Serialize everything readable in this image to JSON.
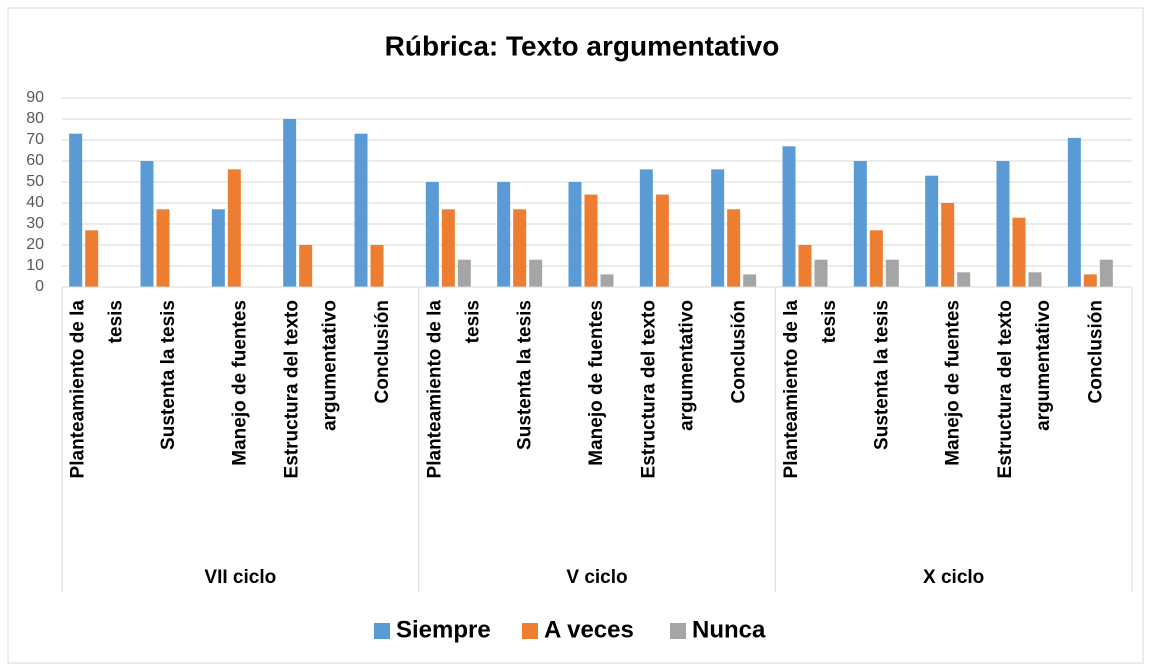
{
  "chart_data": {
    "type": "bar",
    "title": "Rúbrica: Texto argumentativo",
    "categories": [
      "Planteamiento de la tesis",
      "Sustenta la tesis",
      "Manejo de fuentes",
      "Estructura del texto argumentativo",
      "Conclusión",
      "Planteamiento de la tesis",
      "Sustenta la tesis",
      "Manejo de fuentes",
      "Estructura del texto argumentativo",
      "Conclusión",
      "Planteamiento de la tesis",
      "Sustenta la tesis",
      "Manejo de fuentes",
      "Estructura del texto argumentativo",
      "Conclusión"
    ],
    "groups": [
      "VII ciclo",
      "V ciclo",
      "X ciclo"
    ],
    "series": [
      {
        "name": "Siempre",
        "color": "#5b9bd5",
        "values": [
          73,
          60,
          37,
          80,
          73,
          50,
          50,
          50,
          56,
          56,
          67,
          60,
          53,
          60,
          71
        ]
      },
      {
        "name": "A veces",
        "color": "#ed7d31",
        "values": [
          27,
          37,
          56,
          20,
          20,
          37,
          37,
          44,
          44,
          37,
          20,
          27,
          40,
          33,
          6
        ]
      },
      {
        "name": "Nunca",
        "color": "#a5a5a5",
        "values": [
          0,
          0,
          0,
          0,
          0,
          13,
          13,
          6,
          0,
          6,
          13,
          13,
          7,
          7,
          13
        ]
      }
    ],
    "ylim": [
      0,
      90
    ],
    "yticks": [
      0,
      10,
      20,
      30,
      40,
      50,
      60,
      70,
      80,
      90
    ],
    "grid": true,
    "legend": "bottom"
  }
}
